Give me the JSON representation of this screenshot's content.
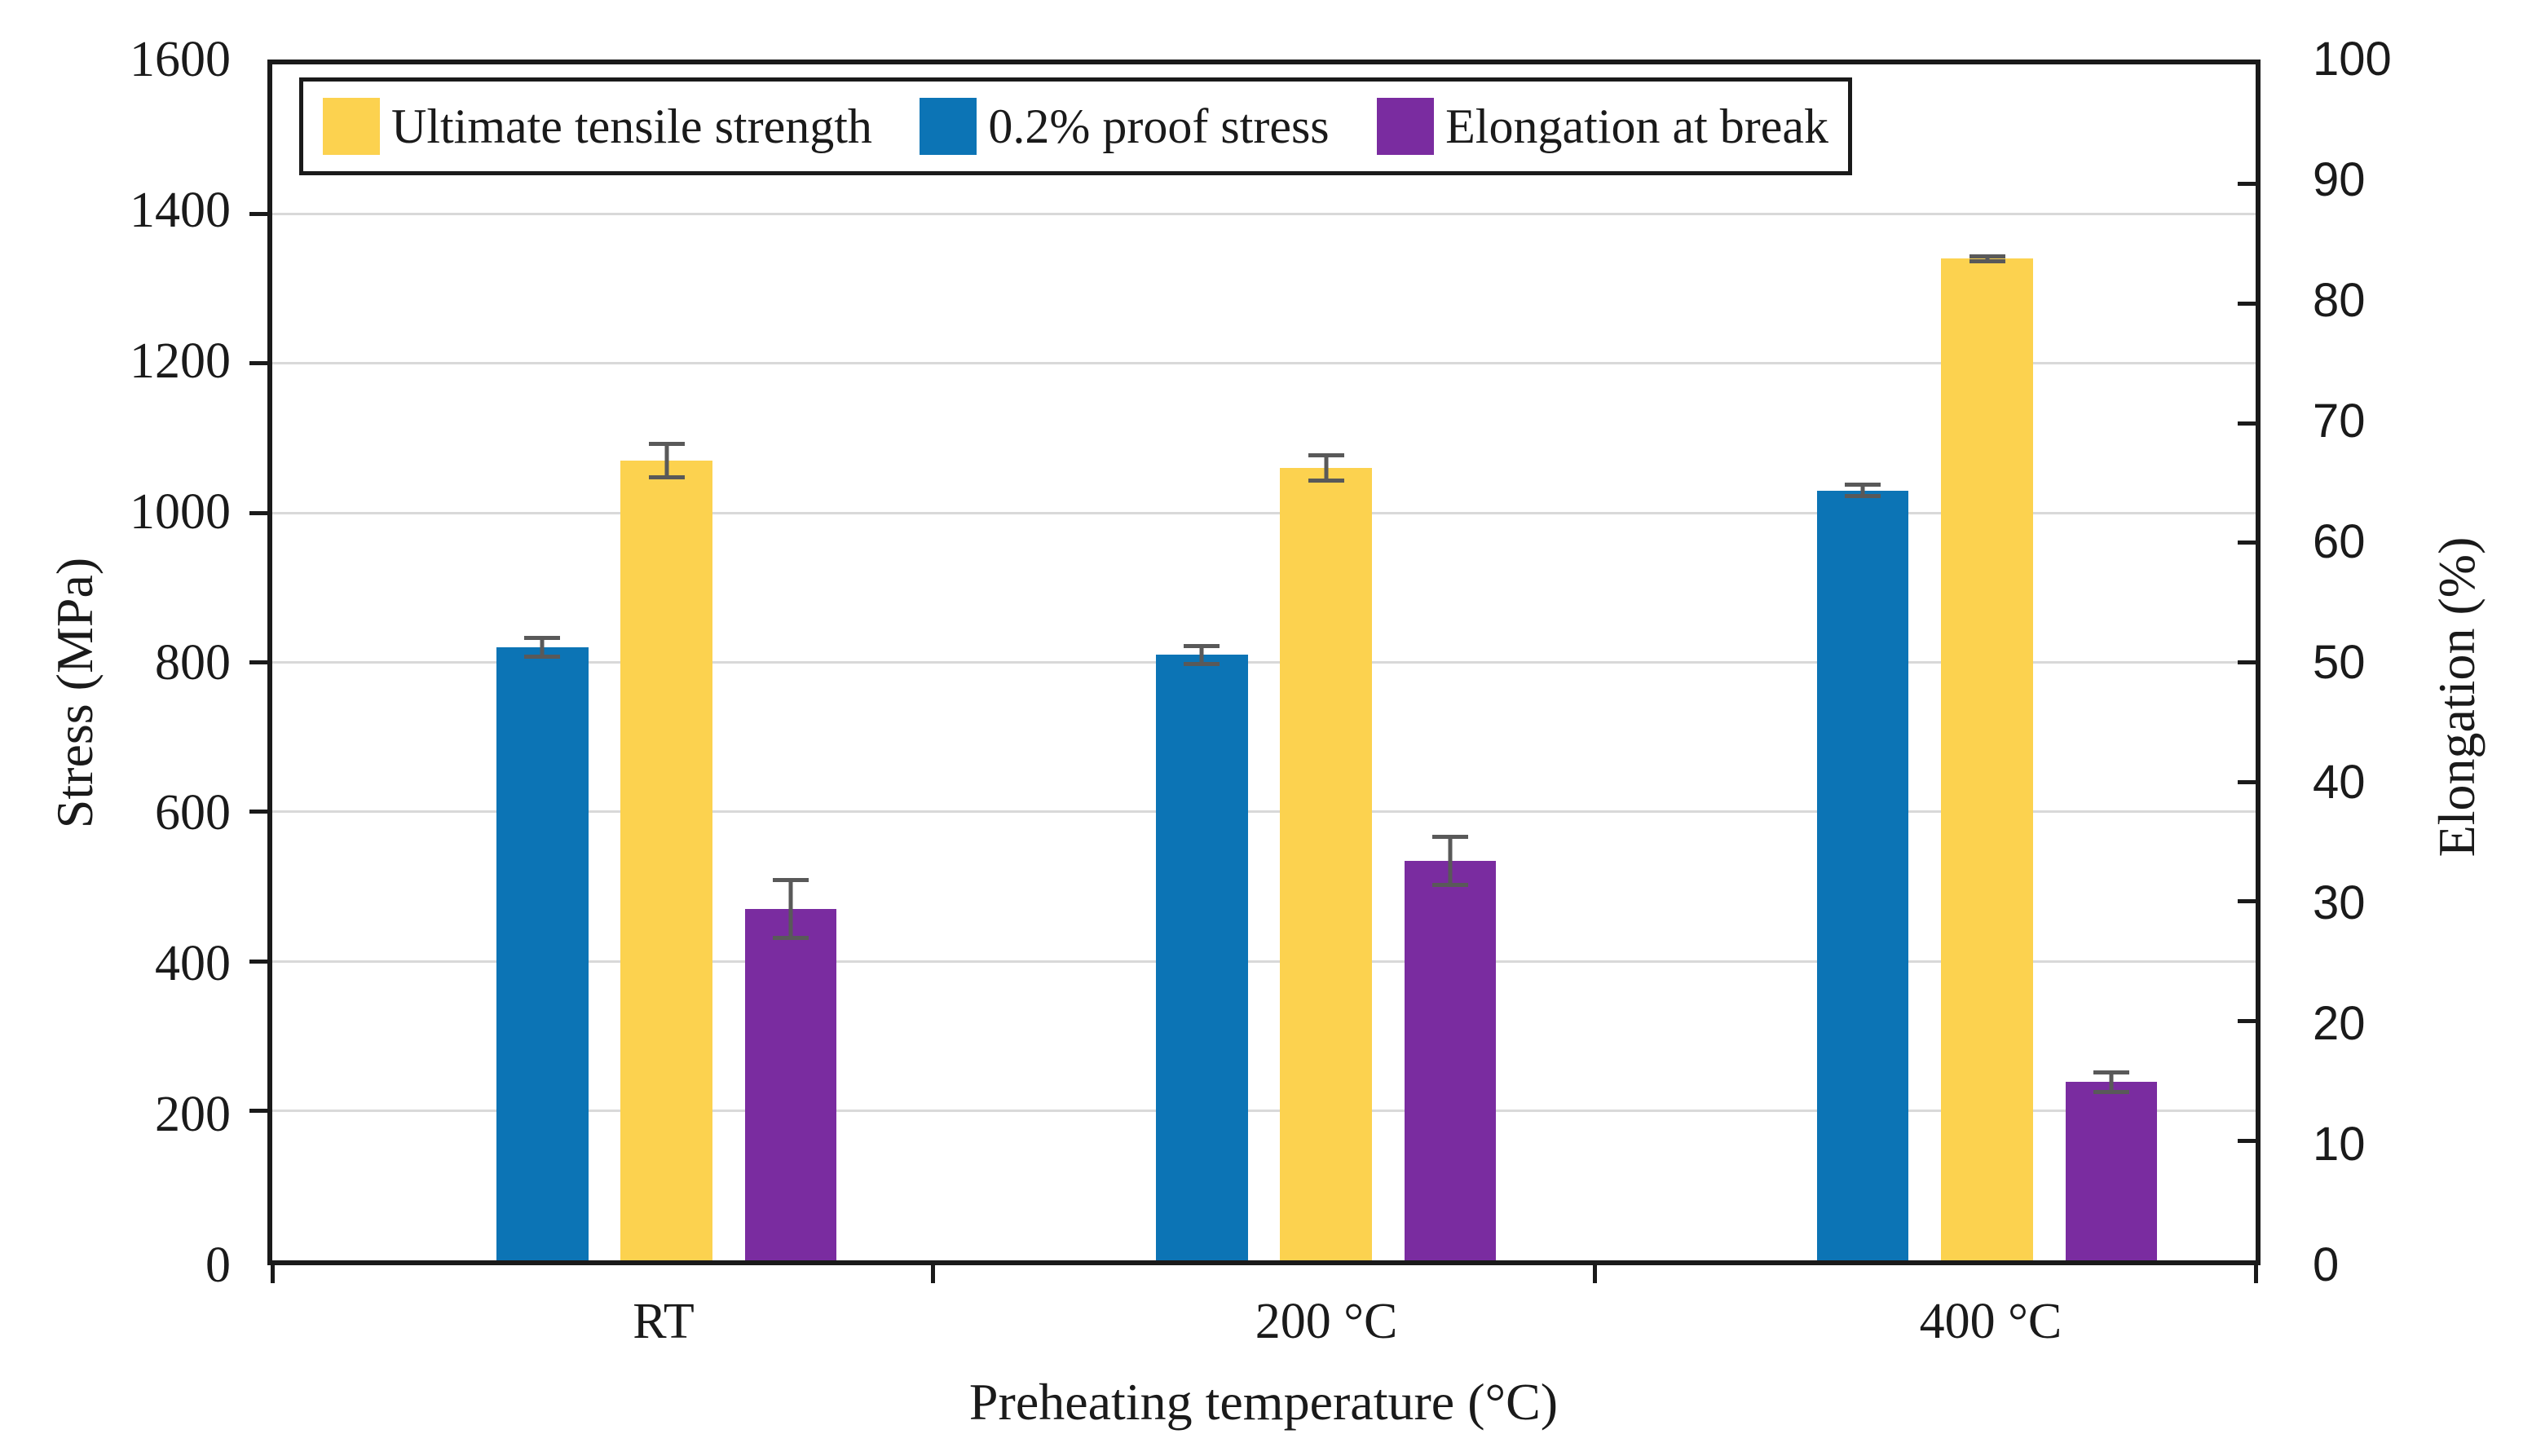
{
  "chart_data": {
    "type": "bar",
    "title": "",
    "categories": [
      "RT",
      "200 °C",
      "400 °C"
    ],
    "xlabel": "Preheating temperature (°C)",
    "ylabel_left": "Stress (MPa)",
    "ylabel_right": "Elongation (%)",
    "ylim_left": [
      0,
      1600
    ],
    "ylim_right": [
      0,
      100
    ],
    "left_tick_step": 200,
    "right_tick_step": 10,
    "grid": true,
    "legend_position": "top-inside",
    "series": [
      {
        "name": "Ultimate tensile strength",
        "axis": "left",
        "unit": "MPa",
        "color": "#FCD24F",
        "values": [
          1070,
          1060,
          1340
        ],
        "errors": [
          25,
          20,
          6
        ],
        "group_position": 2
      },
      {
        "name": "0.2% proof stress",
        "axis": "left",
        "unit": "MPa",
        "color": "#0C74B5",
        "values": [
          820,
          810,
          1030
        ],
        "errors": [
          15,
          15,
          10
        ],
        "group_position": 1
      },
      {
        "name": "Elongation at break",
        "axis": "right",
        "unit": "%",
        "color": "#7A2CA0",
        "values": [
          29.4,
          33.4,
          14.9
        ],
        "errors": [
          2.6,
          2.2,
          1.0
        ],
        "group_position": 3
      }
    ]
  },
  "left_axis": {
    "title": "Stress (MPa)",
    "tick_labels": [
      "0",
      "200",
      "400",
      "600",
      "800",
      "1000",
      "1200",
      "1400",
      "1600"
    ]
  },
  "right_axis": {
    "title": "Elongation (%)",
    "tick_labels": [
      "0",
      "10",
      "20",
      "30",
      "40",
      "50",
      "60",
      "70",
      "80",
      "90",
      "100"
    ]
  },
  "x_axis": {
    "title": "Preheating temperature (°C)",
    "tick_labels": [
      "RT",
      "200 °C",
      "400 °C"
    ]
  },
  "legend": {
    "items": [
      {
        "label": "Ultimate tensile strength"
      },
      {
        "label": "0.2% proof stress"
      },
      {
        "label": "Elongation at break"
      }
    ]
  },
  "colors": {
    "uts": "#FCD24F",
    "proof_stress": "#0C74B5",
    "elongation": "#7A2CA0",
    "gridline": "#D9D9D9",
    "axis": "#1A1A1A",
    "error_bar": "#595959",
    "background": "#FFFFFF"
  }
}
